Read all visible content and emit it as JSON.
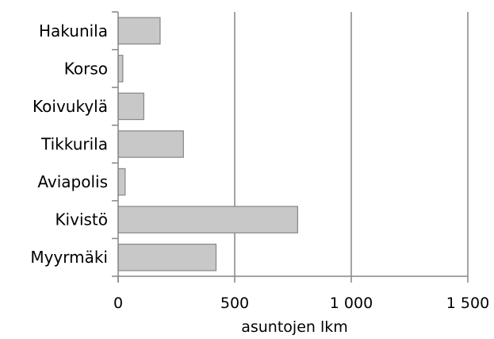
{
  "chart_data": {
    "type": "bar",
    "orientation": "horizontal",
    "categories": [
      "Hakunila",
      "Korso",
      "Koivukylä",
      "Tikkurila",
      "Aviapolis",
      "Kivistö",
      "Myyrmäki"
    ],
    "values": [
      180,
      20,
      110,
      280,
      30,
      770,
      420
    ],
    "xlim": [
      0,
      1500
    ],
    "xticks": [
      0,
      500,
      1000,
      1500
    ],
    "xtick_labels": [
      "0",
      "500",
      "1 000",
      "1 500"
    ],
    "xlabel": "asuntojen lkm",
    "grid": "vertical",
    "legend": "none",
    "colors": {
      "bar_fill": "#c8c8c8",
      "bar_stroke": "#868686",
      "grid": "#868686",
      "axis": "#868686"
    }
  }
}
